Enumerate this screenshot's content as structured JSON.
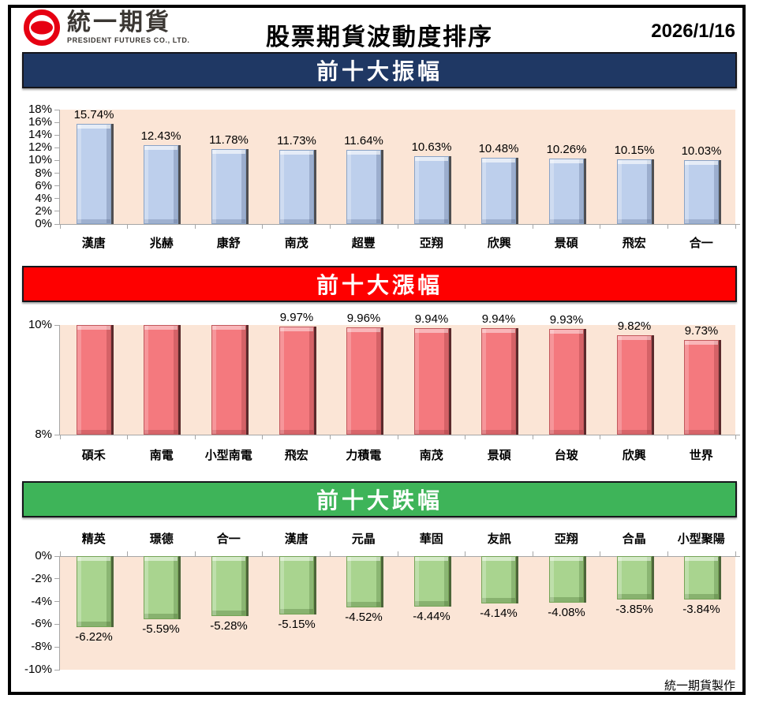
{
  "header": {
    "brand_cjk": "統一期貨",
    "brand_en": "PRESIDENT FUTURES CO., LTD.",
    "title": "股票期貨波動度排序",
    "date": "2026/1/16"
  },
  "footer": {
    "credit": "統一期貨製作"
  },
  "colors": {
    "banner_amplitude": "#1f3864",
    "banner_gainers": "#fe0000",
    "banner_losers": "#3eb459",
    "bar_blue": "#bdcfec",
    "bar_red": "#f4797e",
    "bar_green": "#a9d48f",
    "plot_background": "#fbe5d6",
    "axis": "#a6a6a6"
  },
  "chart_data": [
    {
      "type": "bar",
      "title": "前十大振幅",
      "categories": [
        "漢唐",
        "兆赫",
        "康舒",
        "南茂",
        "超豐",
        "亞翔",
        "欣興",
        "景碩",
        "飛宏",
        "合一"
      ],
      "values": [
        15.74,
        12.43,
        11.78,
        11.73,
        11.64,
        10.63,
        10.48,
        10.26,
        10.15,
        10.03
      ],
      "labels": [
        "15.74%",
        "12.43%",
        "11.78%",
        "11.73%",
        "11.64%",
        "10.63%",
        "10.48%",
        "10.26%",
        "10.15%",
        "10.03%"
      ],
      "ylim": [
        0,
        18
      ],
      "yticks": [
        "18%",
        "16%",
        "14%",
        "12%",
        "10%",
        "8%",
        "6%",
        "4%",
        "2%",
        "0%"
      ],
      "bar_style": "bar-blue",
      "banner_color": "#1f3864",
      "legend": "none",
      "grid": "off"
    },
    {
      "type": "bar",
      "title": "前十大漲幅",
      "categories": [
        "碩禾",
        "南電",
        "小型南電",
        "飛宏",
        "力積電",
        "南茂",
        "景碩",
        "台玻",
        "欣興",
        "世界"
      ],
      "values": [
        10.0,
        10.0,
        10.0,
        9.97,
        9.96,
        9.94,
        9.94,
        9.93,
        9.82,
        9.73
      ],
      "labels": [
        "",
        "",
        "",
        "9.97%",
        "9.96%",
        "9.94%",
        "9.94%",
        "9.93%",
        "9.82%",
        "9.73%"
      ],
      "ylim": [
        8,
        10
      ],
      "yticks": [
        "10%",
        "8%"
      ],
      "bar_style": "bar-red",
      "banner_color": "#fe0000",
      "legend": "none",
      "grid": "off"
    },
    {
      "type": "bar",
      "title": "前十大跌幅",
      "categories": [
        "精英",
        "璟德",
        "合一",
        "漢唐",
        "元晶",
        "華固",
        "友訊",
        "亞翔",
        "合晶",
        "小型聚陽"
      ],
      "values": [
        -6.22,
        -5.59,
        -5.28,
        -5.15,
        -4.52,
        -4.44,
        -4.14,
        -4.08,
        -3.85,
        -3.84
      ],
      "labels": [
        "-6.22%",
        "-5.59%",
        "-5.28%",
        "-5.15%",
        "-4.52%",
        "-4.44%",
        "-4.14%",
        "-4.08%",
        "-3.85%",
        "-3.84%"
      ],
      "ylim": [
        -10,
        0
      ],
      "yticks": [
        "0%",
        "-2%",
        "-4%",
        "-6%",
        "-8%",
        "-10%"
      ],
      "bar_style": "bar-green",
      "banner_color": "#3eb459",
      "legend": "none",
      "grid": "off"
    }
  ]
}
